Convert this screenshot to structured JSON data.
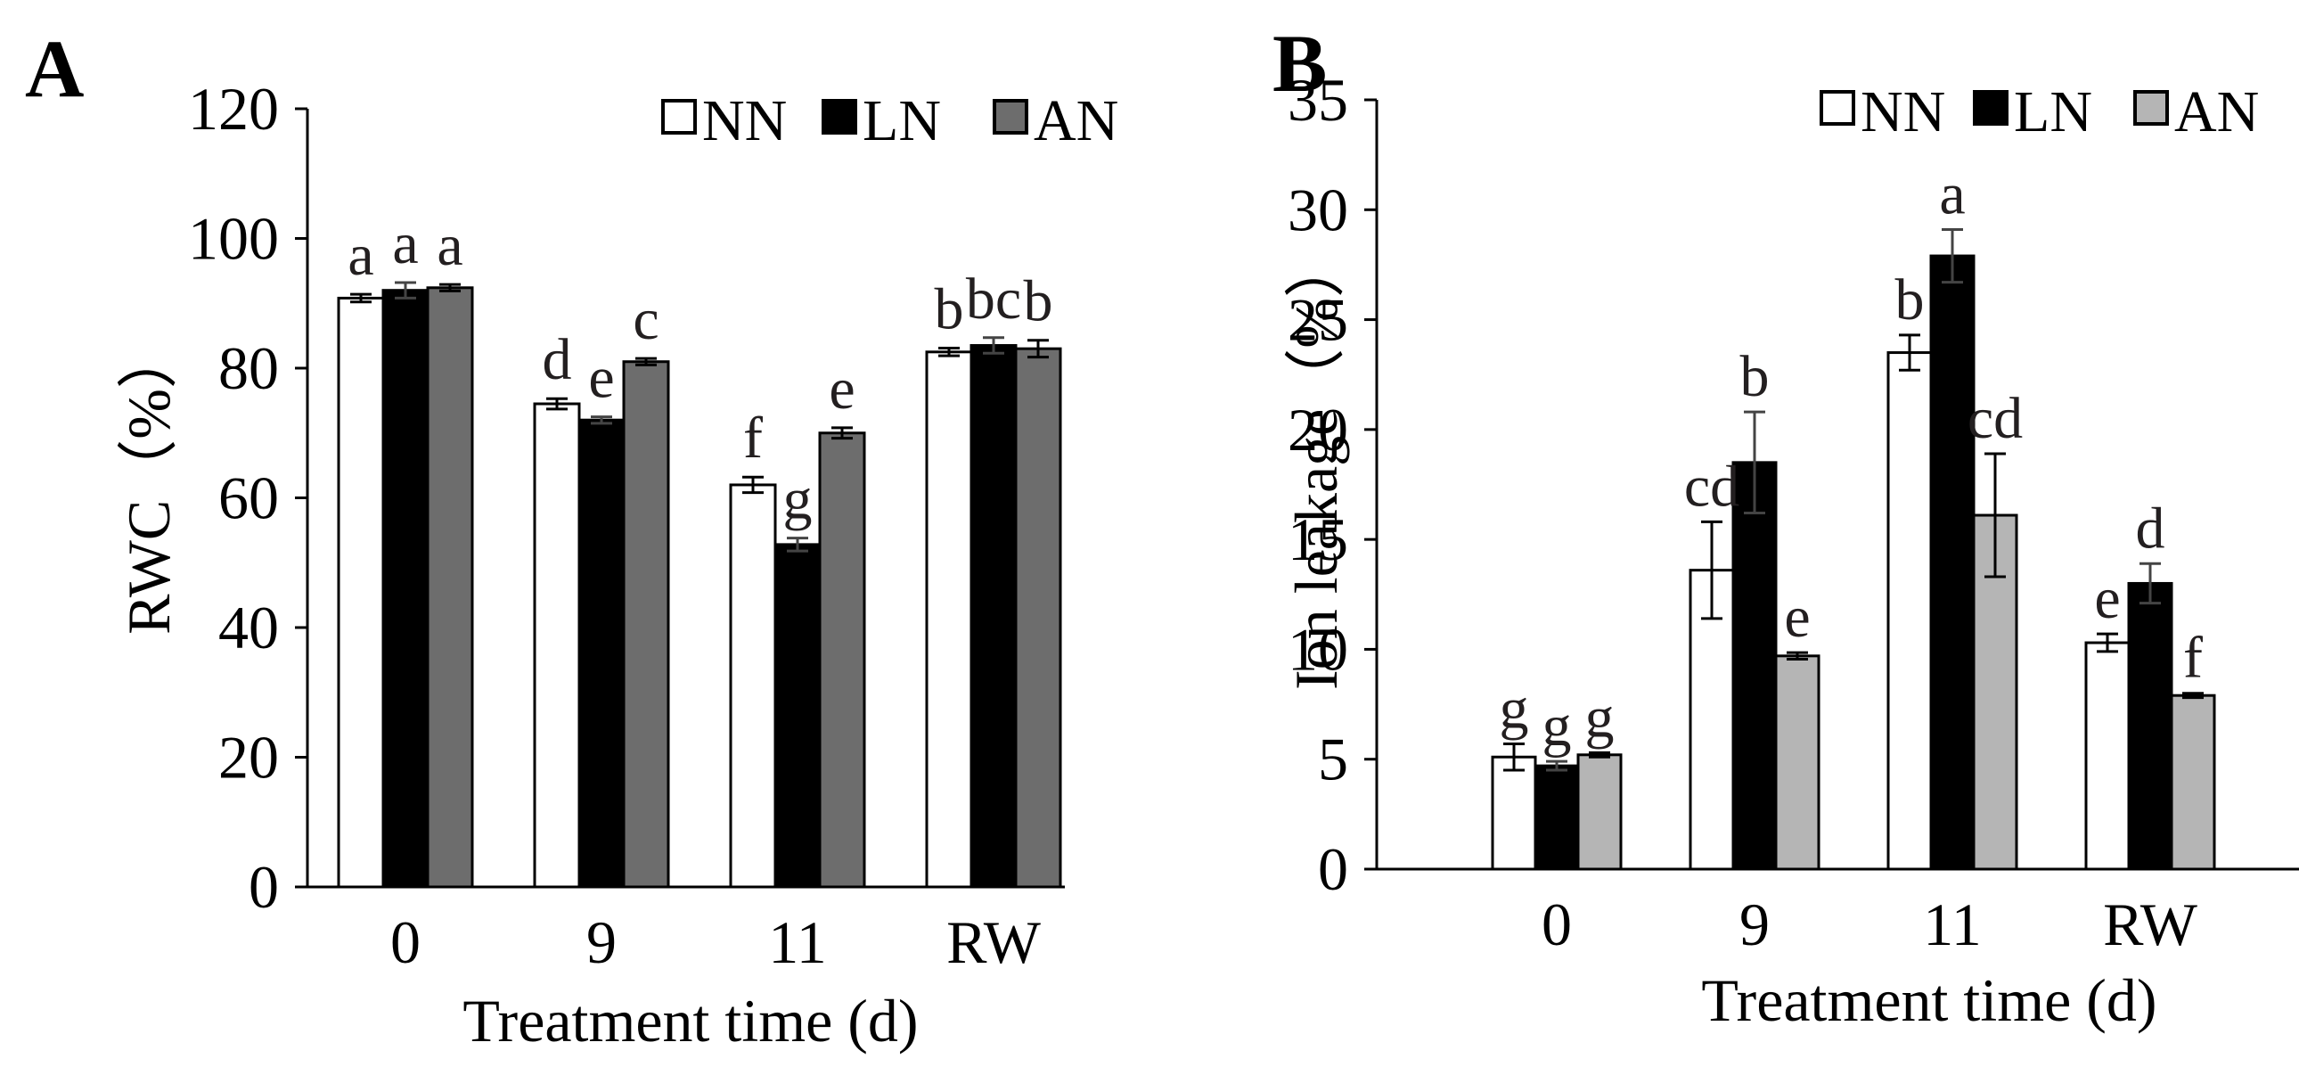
{
  "chart_data": [
    {
      "panel": "A",
      "type": "bar",
      "categories": [
        "0",
        "9",
        "11",
        "RW"
      ],
      "series": [
        {
          "name": "NN",
          "color": "#ffffff",
          "values": [
            90.8,
            74.5,
            62.0,
            82.5
          ],
          "errors": [
            0.6,
            0.8,
            1.2,
            0.6
          ]
        },
        {
          "name": "LN",
          "color": "#000000",
          "values": [
            92.0,
            72.0,
            52.8,
            83.5
          ],
          "errors": [
            1.2,
            0.5,
            1.0,
            1.2
          ]
        },
        {
          "name": "AN",
          "color": "#6d6d6d",
          "values": [
            92.4,
            81.0,
            70.0,
            83.0
          ],
          "errors": [
            0.5,
            0.5,
            0.8,
            1.3
          ]
        }
      ],
      "significance": [
        [
          "a",
          "d",
          "f",
          "b"
        ],
        [
          "a",
          "e",
          "g",
          "bc"
        ],
        [
          "a",
          "c",
          "e",
          "b"
        ]
      ],
      "yticks": [
        "0",
        "20",
        "40",
        "60",
        "80",
        "100",
        "120"
      ],
      "ylim": [
        0,
        120
      ],
      "ylabel": "RWC（%）",
      "xlabel": "Treatment time (d)",
      "legend_position": "top-right",
      "grid": false
    },
    {
      "panel": "B",
      "type": "bar",
      "categories": [
        "0",
        "9",
        "11",
        "RW"
      ],
      "series": [
        {
          "name": "NN",
          "color": "#ffffff",
          "values": [
            5.1,
            13.6,
            23.5,
            10.3
          ],
          "errors": [
            0.6,
            2.2,
            0.8,
            0.4
          ]
        },
        {
          "name": "LN",
          "color": "#000000",
          "values": [
            4.7,
            18.5,
            27.9,
            13.0
          ],
          "errors": [
            0.2,
            2.3,
            1.2,
            0.9
          ]
        },
        {
          "name": "AN",
          "color": "#b5b5b5",
          "values": [
            5.2,
            9.7,
            16.1,
            7.9
          ],
          "errors": [
            0.1,
            0.15,
            2.8,
            0.1
          ]
        }
      ],
      "significance": [
        [
          "g",
          "cd",
          "b",
          "e"
        ],
        [
          "g",
          "b",
          "a",
          "d"
        ],
        [
          "g",
          "e",
          "cd",
          "f"
        ]
      ],
      "yticks": [
        "0",
        "5",
        "10",
        "15",
        "20",
        "25",
        "30",
        "35"
      ],
      "ylim": [
        0,
        35
      ],
      "ylabel": "Ion leakage（%）",
      "xlabel": "Treatment time (d)",
      "legend_position": "top-right",
      "grid": false
    }
  ]
}
